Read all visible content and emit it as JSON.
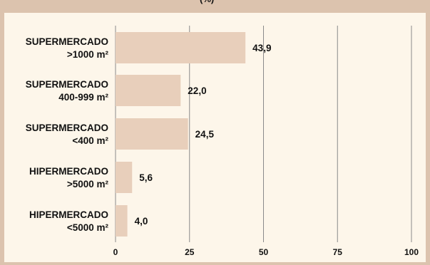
{
  "header_fragment": "(%)",
  "chart_data": {
    "type": "bar",
    "orientation": "horizontal",
    "categories": [
      [
        "SUPERMERCADO",
        ">1000 m²"
      ],
      [
        "SUPERMERCADO",
        "400-999 m²"
      ],
      [
        "SUPERMERCADO",
        "<400 m²"
      ],
      [
        "HIPERMERCADO",
        ">5000 m²"
      ],
      [
        "HIPERMERCADO",
        "<5000 m²"
      ]
    ],
    "values": [
      43.9,
      22.0,
      24.5,
      5.6,
      4.0
    ],
    "value_labels": [
      "43,9",
      "22,0",
      "24,5",
      "5,6",
      "4,0"
    ],
    "xlim": [
      0,
      100
    ],
    "xticks": [
      0,
      25,
      50,
      75,
      100
    ],
    "xtick_labels": [
      "0",
      "25",
      "50",
      "75",
      "100"
    ],
    "grid": "vertical",
    "colors": {
      "bar": "#e8cfbb",
      "grid": "#8a8a8a",
      "background": "#fdf6ea",
      "frame": "#dcc3ae"
    }
  }
}
